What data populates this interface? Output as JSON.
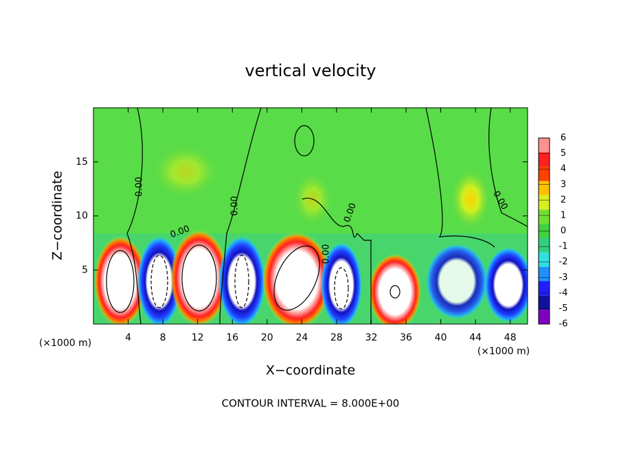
{
  "chart_data": {
    "type": "contourf",
    "title": "vertical velocity",
    "x_label": "X−coordinate",
    "y_label": "Z−coordinate",
    "x_unit": "(×1000 m)",
    "y_unit": "(×1000 m)",
    "xlim": [
      0,
      50
    ],
    "xticks": [
      4,
      8,
      12,
      16,
      20,
      24,
      28,
      32,
      36,
      40,
      44,
      48
    ],
    "ylim": [
      0,
      20
    ],
    "yticks": [
      5,
      10,
      15
    ],
    "colorbar_ticks": [
      -6,
      -5,
      -4,
      -3,
      -2,
      -1,
      0,
      1,
      2,
      3,
      4,
      5,
      6
    ],
    "colorbar_colors": [
      "#8000c0",
      "#1010a0",
      "#2020ff",
      "#2090ff",
      "#30e0e0",
      "#30d080",
      "#40d040",
      "#70e030",
      "#d8f020",
      "#ffc000",
      "#ff4000",
      "#ff2020",
      "#ff9090"
    ],
    "contour_label": "0.00",
    "footer": "CONTOUR INTERVAL = 8.000E+00"
  }
}
